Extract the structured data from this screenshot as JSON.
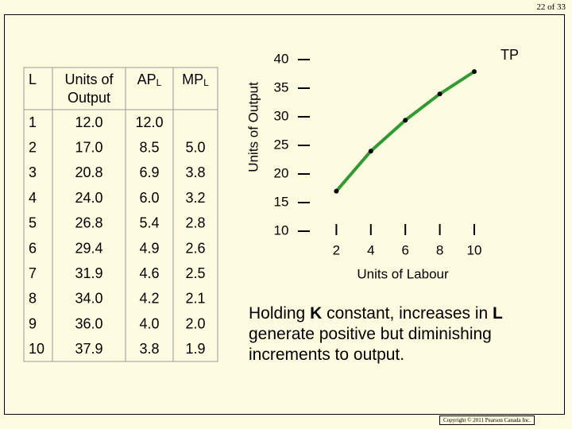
{
  "page": {
    "counter": "22 of 33",
    "copyright": "Copyright © 2011 Pearson Canada Inc."
  },
  "table": {
    "header": [
      "L",
      "Units of Output",
      [
        "AP",
        "L"
      ],
      [
        "MP",
        "L"
      ]
    ],
    "rows": [
      [
        "1",
        "12.0",
        "12.0",
        null
      ],
      [
        "2",
        "17.0",
        "8.5",
        "5.0"
      ],
      [
        "3",
        "20.8",
        "6.9",
        "3.8"
      ],
      [
        "4",
        "24.0",
        "6.0",
        "3.2"
      ],
      [
        "5",
        "26.8",
        "5.4",
        "2.8"
      ],
      [
        "6",
        "29.4",
        "4.9",
        "2.6"
      ],
      [
        "7",
        "31.9",
        "4.6",
        "2.5"
      ],
      [
        "8",
        "34.0",
        "4.2",
        "2.1"
      ],
      [
        "9",
        "36.0",
        "4.0",
        "2.0"
      ],
      [
        "10",
        "37.9",
        "3.8",
        "1.9"
      ]
    ]
  },
  "note": [
    {
      "text": "Holding "
    },
    {
      "text": "K",
      "bold": true
    },
    {
      "text": " constant, increases in "
    },
    {
      "text": "L",
      "bold": true
    },
    {
      "text": " generate positive but diminishing increments to output."
    }
  ],
  "chart_data": {
    "type": "line",
    "x_label": "Units of Labour",
    "y_label": "Units of Output",
    "x": [
      2,
      4,
      6,
      8,
      10
    ],
    "series": [
      {
        "name": "TP",
        "color": "#339933",
        "values": [
          17,
          24,
          29.4,
          34,
          37.9
        ]
      }
    ],
    "xlim": [
      0,
      10
    ],
    "xticks": [
      2,
      4,
      6,
      8,
      10
    ],
    "ylim": [
      10,
      40
    ],
    "yticks": [
      10,
      15,
      20,
      25,
      30,
      35,
      40
    ]
  }
}
